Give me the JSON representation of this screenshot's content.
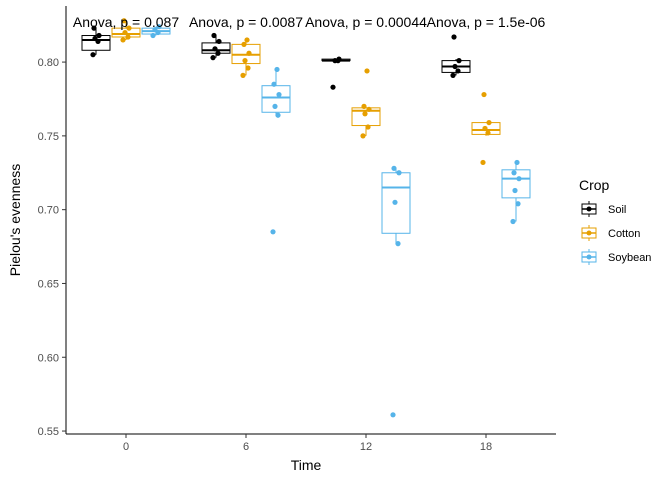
{
  "chart_data": {
    "type": "boxplot",
    "xlabel": "Time",
    "ylabel": "Pielou's evenness",
    "categories": [
      "0",
      "6",
      "12",
      "18"
    ],
    "ylim": [
      0.548,
      0.838
    ],
    "yticks": [
      0.55,
      0.6,
      0.65,
      0.7,
      0.75,
      0.8
    ],
    "ytick_labels": [
      "0.55",
      "0.60",
      "0.65",
      "0.70",
      "0.75",
      "0.80"
    ],
    "annotations": [
      "Anova, p = 0.087",
      "Anova, p = 0.0087",
      "Anova, p = 0.00044",
      "Anova, p = 1.5e-06"
    ],
    "legend": {
      "title": "Crop",
      "position": "right"
    },
    "grid": false,
    "series": [
      {
        "name": "Soil",
        "color": "#000000",
        "boxes": [
          {
            "min": 0.805,
            "q1": 0.808,
            "median": 0.815,
            "q3": 0.818,
            "max": 0.823,
            "points": [
              0.805,
              0.814,
              0.816,
              0.818,
              0.823
            ]
          },
          {
            "min": 0.803,
            "q1": 0.806,
            "median": 0.808,
            "q3": 0.813,
            "max": 0.818,
            "points": [
              0.803,
              0.806,
              0.809,
              0.814,
              0.818
            ]
          },
          {
            "min": 0.801,
            "q1": 0.801,
            "median": 0.801,
            "q3": 0.802,
            "max": 0.802,
            "points": [
              0.783,
              0.801,
              0.801,
              0.802
            ]
          },
          {
            "min": 0.791,
            "q1": 0.793,
            "median": 0.797,
            "q3": 0.801,
            "max": 0.802,
            "points": [
              0.791,
              0.794,
              0.797,
              0.801,
              0.817
            ]
          }
        ]
      },
      {
        "name": "Cotton",
        "color": "#E69F00",
        "boxes": [
          {
            "min": 0.815,
            "q1": 0.817,
            "median": 0.819,
            "q3": 0.823,
            "max": 0.828,
            "points": [
              0.815,
              0.817,
              0.82,
              0.823,
              0.828
            ]
          },
          {
            "min": 0.791,
            "q1": 0.799,
            "median": 0.805,
            "q3": 0.812,
            "max": 0.815,
            "points": [
              0.791,
              0.796,
              0.801,
              0.806,
              0.812,
              0.815
            ]
          },
          {
            "min": 0.75,
            "q1": 0.757,
            "median": 0.767,
            "q3": 0.769,
            "max": 0.77,
            "points": [
              0.75,
              0.756,
              0.765,
              0.768,
              0.77,
              0.794
            ]
          },
          {
            "min": 0.75,
            "q1": 0.751,
            "median": 0.754,
            "q3": 0.759,
            "max": 0.759,
            "points": [
              0.732,
              0.752,
              0.755,
              0.759,
              0.778
            ]
          }
        ]
      },
      {
        "name": "Soybean",
        "color": "#56B4E9",
        "boxes": [
          {
            "min": 0.818,
            "q1": 0.819,
            "median": 0.821,
            "q3": 0.823,
            "max": 0.824,
            "points": [
              0.818,
              0.82,
              0.822,
              0.824
            ]
          },
          {
            "min": 0.764,
            "q1": 0.766,
            "median": 0.776,
            "q3": 0.784,
            "max": 0.795,
            "points": [
              0.685,
              0.764,
              0.77,
              0.778,
              0.785,
              0.795
            ]
          },
          {
            "min": 0.677,
            "q1": 0.684,
            "median": 0.715,
            "q3": 0.725,
            "max": 0.728,
            "points": [
              0.561,
              0.677,
              0.705,
              0.725,
              0.728
            ]
          },
          {
            "min": 0.692,
            "q1": 0.708,
            "median": 0.721,
            "q3": 0.727,
            "max": 0.732,
            "points": [
              0.692,
              0.704,
              0.713,
              0.721,
              0.725,
              0.732
            ]
          }
        ]
      }
    ]
  }
}
